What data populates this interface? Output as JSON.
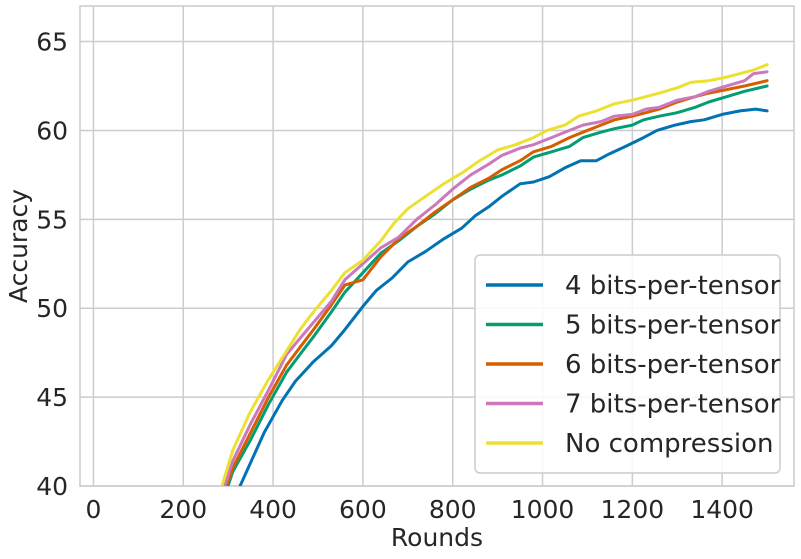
{
  "chart_data": {
    "type": "line",
    "title": "",
    "xlabel": "Rounds",
    "ylabel": "Accuracy",
    "xlim": [
      -30,
      1560
    ],
    "ylim": [
      40,
      67
    ],
    "xticks": [
      0,
      200,
      400,
      600,
      800,
      1000,
      1200,
      1400
    ],
    "yticks": [
      40,
      45,
      50,
      55,
      60,
      65
    ],
    "grid": true,
    "legend_position": "lower-right",
    "series": [
      {
        "name": "4 bits-per-tensor",
        "color": "#0173b2",
        "x": [
          280,
          330,
          380,
          420,
          450,
          490,
          530,
          560,
          600,
          630,
          665,
          700,
          740,
          780,
          820,
          850,
          880,
          910,
          950,
          980,
          1015,
          1050,
          1085,
          1120,
          1150,
          1185,
          1225,
          1255,
          1295,
          1330,
          1360,
          1400,
          1440,
          1475,
          1500
        ],
        "y": [
          37.5,
          40.2,
          43.0,
          44.8,
          45.9,
          47.0,
          47.9,
          48.8,
          50.1,
          51.0,
          51.7,
          52.6,
          53.2,
          53.9,
          54.5,
          55.2,
          55.7,
          56.3,
          57.0,
          57.1,
          57.4,
          57.9,
          58.3,
          58.3,
          58.7,
          59.1,
          59.6,
          60.0,
          60.3,
          60.5,
          60.6,
          60.9,
          61.1,
          61.2,
          61.1
        ]
      },
      {
        "name": "5 bits-per-tensor",
        "color": "#029e73",
        "x": [
          280,
          310,
          350,
          390,
          430,
          460,
          490,
          530,
          560,
          600,
          640,
          680,
          720,
          760,
          800,
          840,
          880,
          910,
          950,
          980,
          1020,
          1060,
          1090,
          1130,
          1160,
          1200,
          1225,
          1260,
          1300,
          1340,
          1370,
          1410,
          1450,
          1500
        ],
        "y": [
          38.5,
          40.8,
          42.6,
          44.6,
          46.4,
          47.4,
          48.4,
          49.8,
          50.9,
          52.0,
          53.1,
          53.8,
          54.6,
          55.3,
          56.1,
          56.7,
          57.2,
          57.5,
          58.0,
          58.5,
          58.8,
          59.1,
          59.6,
          59.9,
          60.1,
          60.3,
          60.6,
          60.8,
          61.0,
          61.3,
          61.6,
          61.9,
          62.2,
          62.5
        ]
      },
      {
        "name": "6 bits-per-tensor",
        "color": "#d55e00",
        "x": [
          280,
          310,
          350,
          390,
          430,
          460,
          490,
          530,
          560,
          600,
          640,
          680,
          720,
          760,
          800,
          840,
          880,
          910,
          950,
          980,
          1020,
          1060,
          1090,
          1130,
          1160,
          1200,
          1230,
          1260,
          1300,
          1340,
          1370,
          1410,
          1450,
          1500
        ],
        "y": [
          38.8,
          41.0,
          43.0,
          45.0,
          46.8,
          47.8,
          48.8,
          50.2,
          51.3,
          51.6,
          52.9,
          53.9,
          54.6,
          55.4,
          56.1,
          56.8,
          57.3,
          57.8,
          58.3,
          58.8,
          59.1,
          59.6,
          59.9,
          60.3,
          60.6,
          60.8,
          61.0,
          61.2,
          61.6,
          61.9,
          62.1,
          62.3,
          62.5,
          62.8
        ]
      },
      {
        "name": "7 bits-per-tensor",
        "color": "#cc78bc",
        "x": [
          280,
          310,
          350,
          390,
          430,
          460,
          490,
          530,
          560,
          600,
          640,
          680,
          720,
          760,
          800,
          840,
          880,
          910,
          950,
          980,
          1020,
          1060,
          1090,
          1130,
          1160,
          1200,
          1230,
          1260,
          1300,
          1340,
          1370,
          1410,
          1450,
          1470,
          1500
        ],
        "y": [
          39.0,
          41.4,
          43.5,
          45.4,
          47.4,
          48.3,
          49.2,
          50.4,
          51.6,
          52.5,
          53.4,
          54.0,
          55.0,
          55.8,
          56.7,
          57.5,
          58.1,
          58.6,
          59.0,
          59.2,
          59.6,
          60.0,
          60.3,
          60.5,
          60.8,
          60.9,
          61.2,
          61.3,
          61.7,
          61.9,
          62.2,
          62.5,
          62.8,
          63.2,
          63.3
        ]
      },
      {
        "name": "No compression",
        "color": "#ece133",
        "x": [
          280,
          310,
          350,
          390,
          430,
          460,
          490,
          530,
          560,
          600,
          640,
          670,
          700,
          740,
          780,
          820,
          860,
          900,
          940,
          980,
          1010,
          1050,
          1080,
          1120,
          1160,
          1200,
          1230,
          1260,
          1300,
          1330,
          1370,
          1410,
          1440,
          1470,
          1500
        ],
        "y": [
          39.5,
          42.0,
          44.2,
          46.0,
          47.6,
          48.8,
          49.8,
          51.0,
          52.0,
          52.7,
          53.8,
          54.8,
          55.6,
          56.3,
          57.0,
          57.6,
          58.3,
          58.9,
          59.2,
          59.6,
          60.0,
          60.3,
          60.8,
          61.1,
          61.5,
          61.7,
          61.9,
          62.1,
          62.4,
          62.7,
          62.8,
          63.0,
          63.2,
          63.4,
          63.7
        ]
      }
    ]
  }
}
